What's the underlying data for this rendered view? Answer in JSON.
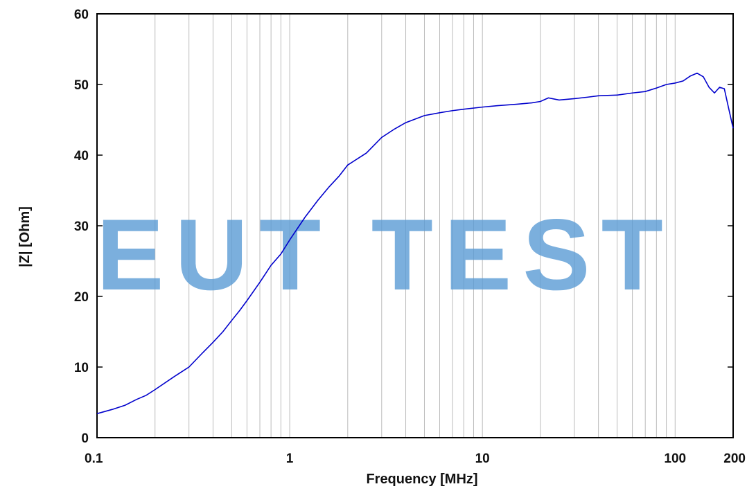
{
  "watermark": "EUT TEST",
  "chart_data": {
    "type": "line",
    "xlabel": "Frequency [MHz]",
    "ylabel": "|Z| [Ohm]",
    "xscale": "log",
    "xlim": [
      0.1,
      200
    ],
    "ylim": [
      0,
      60
    ],
    "grid": "vertical minor and major gridlines (log decades)",
    "x_tick_labels": [
      "0.1",
      "1",
      "10",
      "100",
      "200"
    ],
    "x_ticks": [
      0.1,
      1,
      10,
      100,
      200
    ],
    "y_ticks": [
      0,
      10,
      20,
      30,
      40,
      50,
      60
    ],
    "line_color": "#0000cc",
    "series": [
      {
        "x": [
          0.1,
          0.12,
          0.14,
          0.16,
          0.18,
          0.2,
          0.25,
          0.3,
          0.35,
          0.4,
          0.45,
          0.5,
          0.55,
          0.6,
          0.7,
          0.8,
          0.9,
          1.0,
          1.2,
          1.4,
          1.6,
          1.8,
          2.0,
          2.5,
          3.0,
          3.5,
          4.0,
          5.0,
          6.0,
          7.0,
          8.0,
          10,
          12,
          15,
          18,
          20,
          22,
          25,
          30,
          35,
          40,
          50,
          60,
          70,
          80,
          90,
          100,
          110,
          120,
          130,
          140,
          150,
          160,
          170,
          180,
          190,
          200
        ],
        "y": [
          3.4,
          4.0,
          4.6,
          5.4,
          6.0,
          6.8,
          8.6,
          10.0,
          11.9,
          13.5,
          15.0,
          16.6,
          18.0,
          19.4,
          22.0,
          24.4,
          26.0,
          28.0,
          31.2,
          33.6,
          35.5,
          37.0,
          38.6,
          40.3,
          42.5,
          43.7,
          44.6,
          45.6,
          46.0,
          46.3,
          46.5,
          46.8,
          47.0,
          47.2,
          47.4,
          47.6,
          48.1,
          47.8,
          48.0,
          48.2,
          48.4,
          48.5,
          48.8,
          49.0,
          49.5,
          50.0,
          50.2,
          50.5,
          51.2,
          51.6,
          51.1,
          49.6,
          48.8,
          49.6,
          49.4,
          46.5,
          43.8
        ]
      }
    ]
  }
}
